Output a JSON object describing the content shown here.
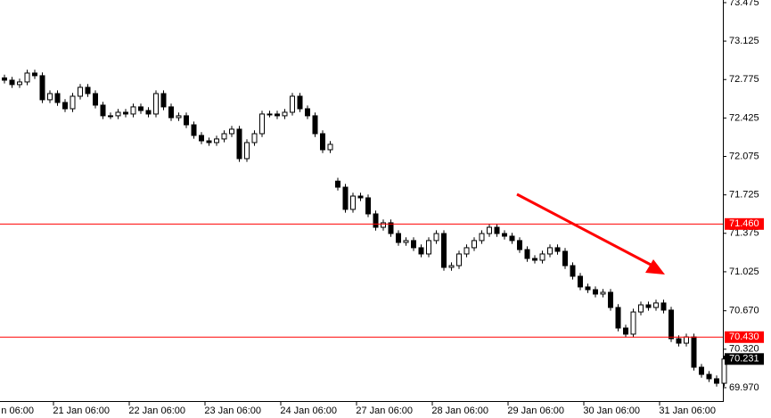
{
  "chart_data": {
    "type": "candlestick",
    "categories": [
      "n 06:00",
      null,
      null,
      null,
      null,
      null,
      null,
      null,
      null,
      null,
      "21 Jan 06:00",
      null,
      null,
      null,
      null,
      null,
      null,
      null,
      null,
      null,
      "22 Jan 06:00",
      null,
      null,
      null,
      null,
      null,
      null,
      null,
      null,
      null,
      "23 Jan 06:00",
      null,
      null,
      null,
      null,
      null,
      null,
      null,
      null,
      null,
      "24 Jan 06:00",
      null,
      null,
      null,
      null,
      null,
      null,
      null,
      null,
      null,
      "27 Jan 06:00",
      null,
      null,
      null,
      null,
      null,
      null,
      null,
      null,
      null,
      "28 Jan 06:00",
      null,
      null,
      null,
      null,
      null,
      null,
      null,
      null,
      null,
      "29 Jan 06:00",
      null,
      null,
      null,
      null,
      null,
      null,
      null,
      null,
      null,
      "30 Jan 06:00",
      null,
      null,
      null,
      null,
      null,
      null,
      null,
      null,
      null,
      "31 Jan 06:00",
      null,
      null,
      null,
      null,
      null
    ],
    "open": [
      72.79,
      72.769,
      72.729,
      72.753,
      72.834,
      72.81,
      72.591,
      72.647,
      72.566,
      72.509,
      72.623,
      72.704,
      72.647,
      72.542,
      72.445,
      72.445,
      72.477,
      72.461,
      72.526,
      72.493,
      72.461,
      72.647,
      72.526,
      72.428,
      72.445,
      72.363,
      72.266,
      72.217,
      72.201,
      72.234,
      72.282,
      72.323,
      72.055,
      72.201,
      72.282,
      72.461,
      72.461,
      72.445,
      72.477,
      72.623,
      72.509,
      72.445,
      72.282,
      72.136,
      71.85,
      71.795,
      71.593,
      71.714,
      71.698,
      71.552,
      71.43,
      71.471,
      71.373,
      71.292,
      71.309,
      71.244,
      71.187,
      71.309,
      71.373,
      71.065,
      71.081,
      71.187,
      71.244,
      71.309,
      71.373,
      71.43,
      71.373,
      71.349,
      71.309,
      71.227,
      71.146,
      71.13,
      71.187,
      71.244,
      71.211,
      71.081,
      70.984,
      70.887,
      70.862,
      70.822,
      70.838,
      70.7,
      70.513,
      70.457,
      70.659,
      70.724,
      70.7,
      70.741,
      70.676,
      70.416,
      70.375,
      70.432,
      70.156,
      70.091,
      70.051,
      70.01
    ],
    "high": [
      72.82,
      72.799,
      72.783,
      72.864,
      72.864,
      72.84,
      72.677,
      72.677,
      72.596,
      72.653,
      72.734,
      72.734,
      72.677,
      72.572,
      72.475,
      72.507,
      72.507,
      72.556,
      72.556,
      72.523,
      72.677,
      72.677,
      72.556,
      72.475,
      72.475,
      72.393,
      72.296,
      72.247,
      72.264,
      72.312,
      72.353,
      72.353,
      72.231,
      72.312,
      72.491,
      72.491,
      72.491,
      72.507,
      72.653,
      72.653,
      72.539,
      72.475,
      72.312,
      72.215,
      71.88,
      71.825,
      71.744,
      71.744,
      71.728,
      71.582,
      71.501,
      71.501,
      71.403,
      71.339,
      71.339,
      71.274,
      71.339,
      71.403,
      71.403,
      71.111,
      71.217,
      71.274,
      71.339,
      71.403,
      71.46,
      71.46,
      71.403,
      71.379,
      71.339,
      71.257,
      71.176,
      71.217,
      71.274,
      71.274,
      71.241,
      71.111,
      71.014,
      70.917,
      70.892,
      70.868,
      70.868,
      70.73,
      70.543,
      70.689,
      70.754,
      70.754,
      70.771,
      70.771,
      70.706,
      70.446,
      70.462,
      70.462,
      70.186,
      70.121,
      70.081,
      70.261
    ],
    "low": [
      72.739,
      72.699,
      72.699,
      72.723,
      72.78,
      72.561,
      72.561,
      72.536,
      72.479,
      72.479,
      72.593,
      72.617,
      72.512,
      72.415,
      72.415,
      72.415,
      72.431,
      72.431,
      72.463,
      72.431,
      72.431,
      72.496,
      72.398,
      72.398,
      72.333,
      72.236,
      72.187,
      72.171,
      72.171,
      72.204,
      72.252,
      72.025,
      72.025,
      72.171,
      72.252,
      72.431,
      72.415,
      72.415,
      72.447,
      72.479,
      72.415,
      72.252,
      72.106,
      72.106,
      71.765,
      71.563,
      71.563,
      71.668,
      71.522,
      71.4,
      71.4,
      71.343,
      71.262,
      71.262,
      71.214,
      71.157,
      71.157,
      71.279,
      71.035,
      71.035,
      71.051,
      71.157,
      71.214,
      71.279,
      71.343,
      71.343,
      71.319,
      71.279,
      71.197,
      71.116,
      71.1,
      71.1,
      71.157,
      71.181,
      71.051,
      70.954,
      70.857,
      70.832,
      70.792,
      70.792,
      70.67,
      70.483,
      70.427,
      70.427,
      70.629,
      70.67,
      70.67,
      70.646,
      70.386,
      70.345,
      70.345,
      70.126,
      70.061,
      70.021,
      69.98,
      69.98
    ],
    "close": [
      72.769,
      72.729,
      72.753,
      72.834,
      72.81,
      72.591,
      72.647,
      72.566,
      72.509,
      72.623,
      72.704,
      72.647,
      72.542,
      72.445,
      72.445,
      72.477,
      72.461,
      72.526,
      72.493,
      72.461,
      72.647,
      72.526,
      72.428,
      72.445,
      72.363,
      72.266,
      72.217,
      72.201,
      72.234,
      72.282,
      72.323,
      72.055,
      72.201,
      72.282,
      72.461,
      72.461,
      72.445,
      72.477,
      72.623,
      72.509,
      72.445,
      72.282,
      72.136,
      72.185,
      71.795,
      71.593,
      71.714,
      71.698,
      71.552,
      71.43,
      71.471,
      71.373,
      71.292,
      71.309,
      71.244,
      71.187,
      71.309,
      71.373,
      71.065,
      71.081,
      71.187,
      71.244,
      71.309,
      71.373,
      71.43,
      71.373,
      71.349,
      71.309,
      71.227,
      71.146,
      71.13,
      71.187,
      71.244,
      71.211,
      71.081,
      70.984,
      70.887,
      70.862,
      70.822,
      70.838,
      70.7,
      70.513,
      70.457,
      70.659,
      70.724,
      70.7,
      70.741,
      70.676,
      70.416,
      70.375,
      70.432,
      70.156,
      70.091,
      70.051,
      70.01,
      70.231
    ],
    "ylim": [
      69.848,
      73.499
    ],
    "yticks": [
      73.475,
      73.125,
      72.775,
      72.425,
      72.075,
      71.725,
      71.375,
      71.025,
      {
        "value": 70.67,
        "label": "70.670"
      },
      {
        "value": 70.32,
        "label": "70.320"
      },
      {
        "value": 69.97,
        "label": "69.970"
      }
    ],
    "levels": [
      {
        "value": 71.46,
        "label": "71.460",
        "color": "#ff0000"
      },
      {
        "value": 70.43,
        "label": "70.430",
        "color": "#ff0000"
      }
    ],
    "last_price": 70.231,
    "up_color": "#ffffff",
    "down_color": "#000000"
  }
}
